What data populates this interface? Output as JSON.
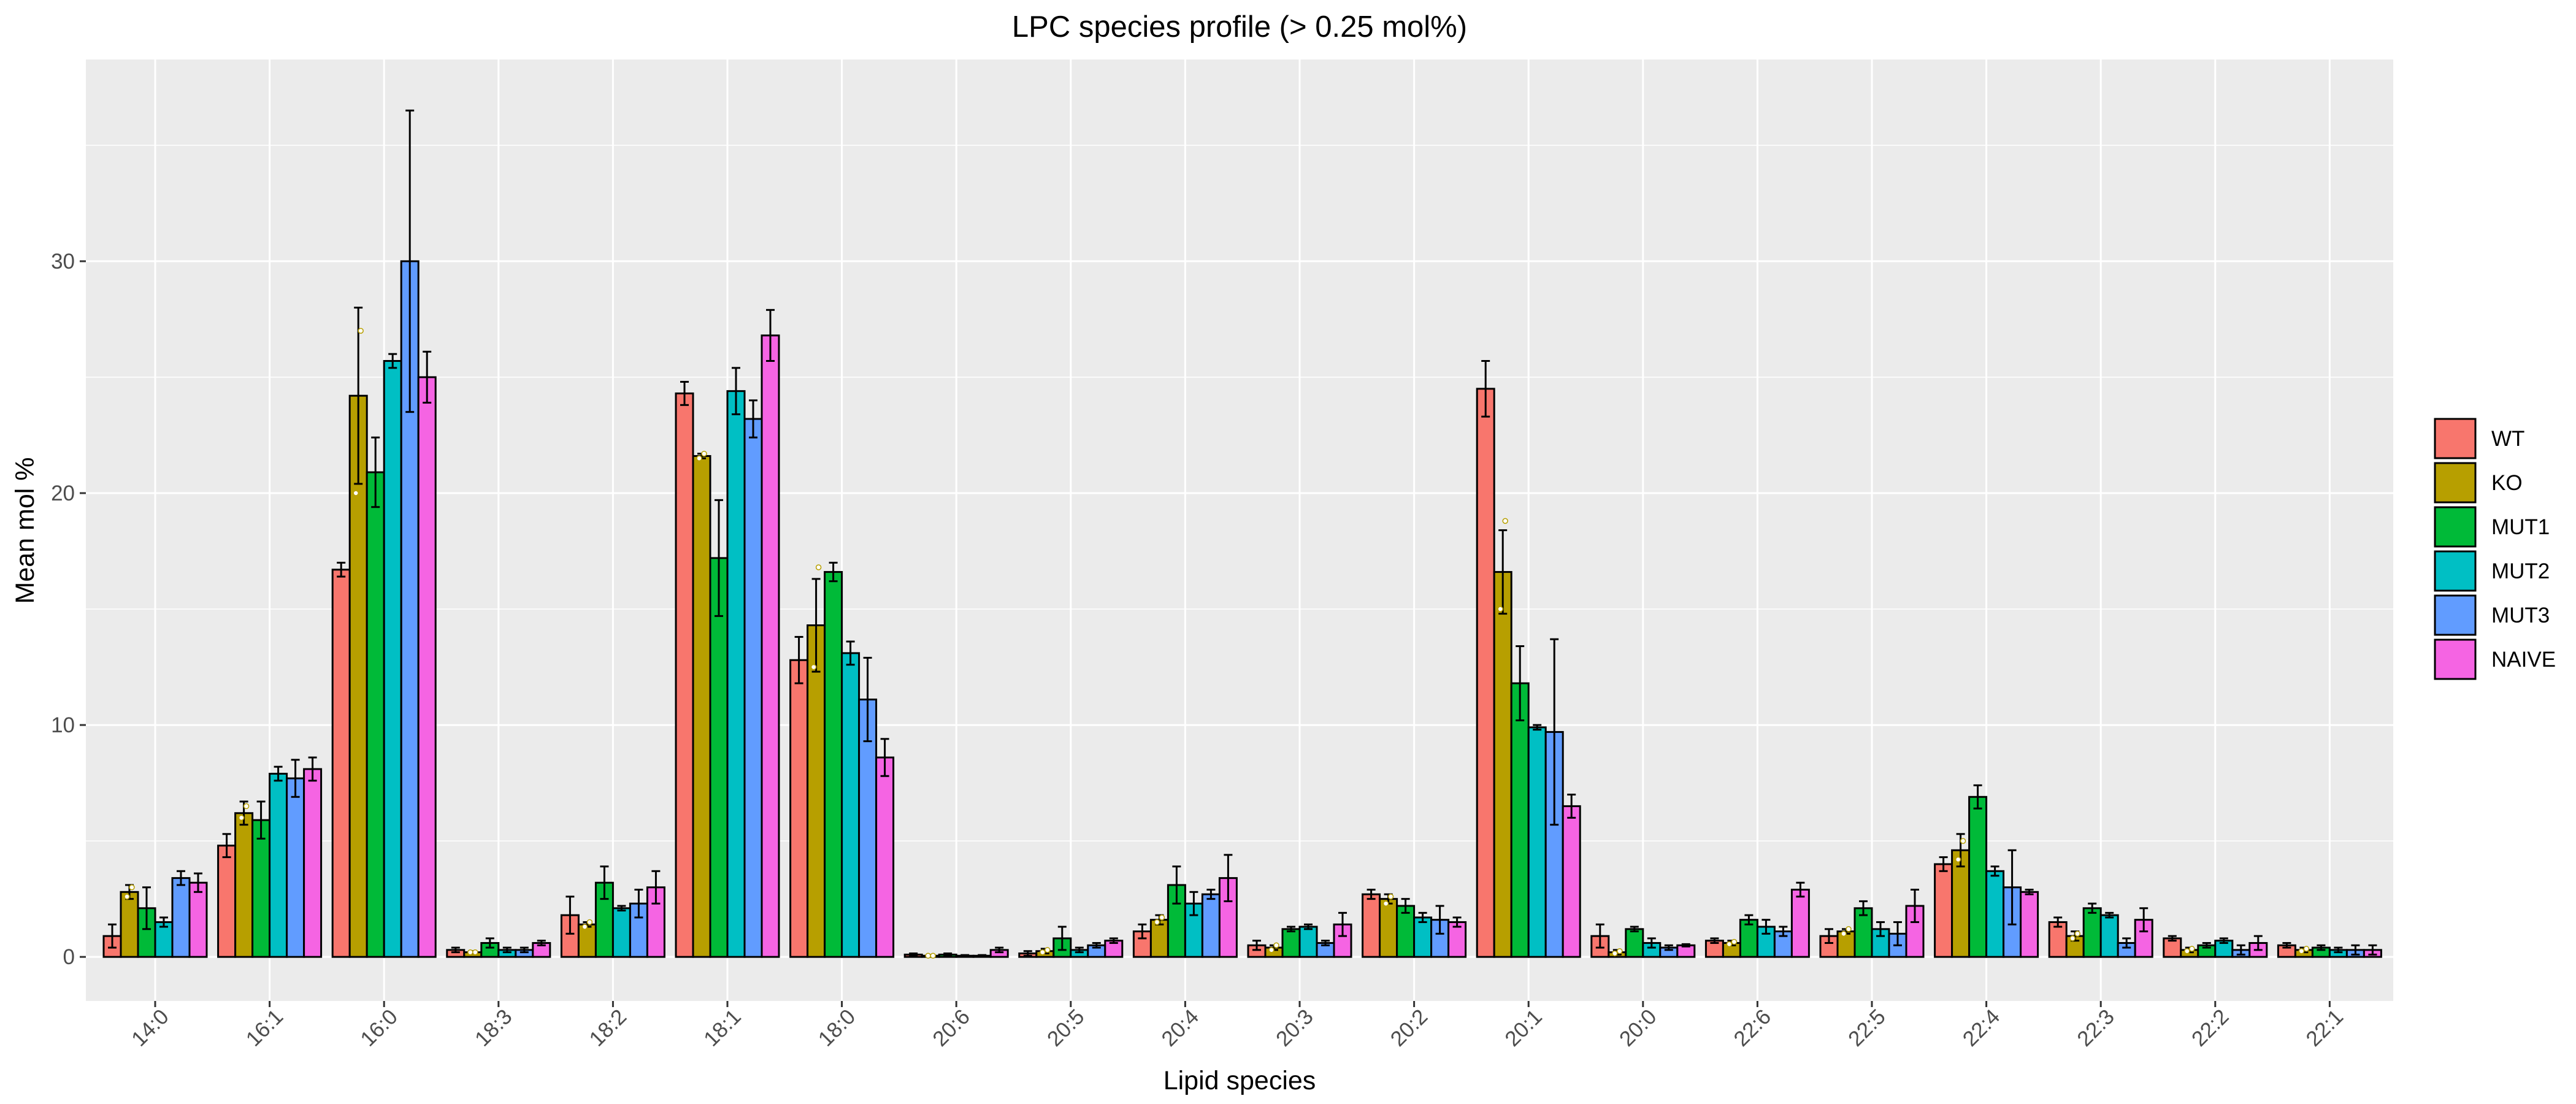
{
  "chart_data": {
    "type": "bar",
    "title": "LPC species profile (> 0.25 mol%)",
    "xlabel": "Lipid species",
    "ylabel": "Mean mol %",
    "ylim": [
      -1.9,
      38.7
    ],
    "yticks": [
      0,
      10,
      20,
      30
    ],
    "grid": true,
    "legend_position": "right",
    "categories": [
      "14:0",
      "16:1",
      "16:0",
      "18:3",
      "18:2",
      "18:1",
      "18:0",
      "20:6",
      "20:5",
      "20:4",
      "20:3",
      "20:2",
      "20:1",
      "20:0",
      "22:6",
      "22:5",
      "22:4",
      "22:3",
      "22:2",
      "22:1"
    ],
    "series": [
      {
        "name": "WT",
        "color": "#F8766D",
        "values": [
          0.9,
          4.8,
          16.7,
          0.3,
          1.8,
          24.3,
          12.8,
          0.1,
          0.15,
          1.1,
          0.5,
          2.7,
          24.5,
          0.9,
          0.7,
          0.9,
          4.0,
          1.5,
          0.8,
          0.5
        ],
        "errors": [
          0.5,
          0.5,
          0.3,
          0.1,
          0.8,
          0.5,
          1.0,
          0.05,
          0.1,
          0.3,
          0.2,
          0.2,
          1.2,
          0.5,
          0.1,
          0.3,
          0.3,
          0.2,
          0.1,
          0.1
        ]
      },
      {
        "name": "KO",
        "color": "#B79F00",
        "values": [
          2.8,
          6.2,
          24.2,
          0.2,
          1.4,
          21.6,
          14.3,
          0.05,
          0.25,
          1.6,
          0.4,
          2.5,
          16.6,
          0.2,
          0.6,
          1.1,
          4.6,
          0.9,
          0.3,
          0.3
        ],
        "errors": [
          0.3,
          0.5,
          3.8,
          0.05,
          0.1,
          0.1,
          2.0,
          0.03,
          0.1,
          0.2,
          0.1,
          0.2,
          1.8,
          0.1,
          0.1,
          0.1,
          0.7,
          0.2,
          0.1,
          0.1
        ],
        "points": [
          [
            2.6,
            3.0
          ],
          [
            6.0,
            6.5
          ],
          [
            20.0,
            27.0
          ],
          [
            0.2,
            0.2
          ],
          [
            1.3,
            1.5
          ],
          [
            21.5,
            21.7
          ],
          [
            12.5,
            16.8
          ],
          [
            0.05,
            0.05
          ],
          [
            0.2,
            0.3
          ],
          [
            1.5,
            1.7
          ],
          [
            0.3,
            0.5
          ],
          [
            2.3,
            2.6
          ],
          [
            15.0,
            18.8
          ],
          [
            0.15,
            0.25
          ],
          [
            0.55,
            0.65
          ],
          [
            1.0,
            1.2
          ],
          [
            4.2,
            5.0
          ],
          [
            0.8,
            1.0
          ],
          [
            0.25,
            0.35
          ],
          [
            0.25,
            0.35
          ]
        ]
      },
      {
        "name": "MUT1",
        "color": "#00BA38",
        "values": [
          2.1,
          5.9,
          20.9,
          0.6,
          3.2,
          17.2,
          16.6,
          0.1,
          0.8,
          3.1,
          1.2,
          2.2,
          11.8,
          1.2,
          1.6,
          2.1,
          6.9,
          2.1,
          0.5,
          0.4
        ],
        "errors": [
          0.9,
          0.8,
          1.5,
          0.2,
          0.7,
          2.5,
          0.4,
          0.05,
          0.5,
          0.8,
          0.1,
          0.3,
          1.6,
          0.1,
          0.2,
          0.3,
          0.5,
          0.2,
          0.1,
          0.1
        ]
      },
      {
        "name": "MUT2",
        "color": "#00BFC4",
        "values": [
          1.5,
          7.9,
          25.7,
          0.3,
          2.1,
          24.4,
          13.1,
          0.05,
          0.3,
          2.3,
          1.3,
          1.7,
          9.9,
          0.6,
          1.3,
          1.2,
          3.7,
          1.8,
          0.7,
          0.3
        ],
        "errors": [
          0.2,
          0.3,
          0.3,
          0.1,
          0.1,
          1.0,
          0.5,
          0.03,
          0.1,
          0.5,
          0.1,
          0.2,
          0.1,
          0.2,
          0.3,
          0.3,
          0.2,
          0.1,
          0.1,
          0.1
        ]
      },
      {
        "name": "MUT3",
        "color": "#619CFF",
        "values": [
          3.4,
          7.7,
          30.0,
          0.3,
          2.3,
          23.2,
          11.1,
          0.05,
          0.5,
          2.7,
          0.6,
          1.6,
          9.7,
          0.4,
          1.1,
          1.0,
          3.0,
          0.6,
          0.3,
          0.3
        ],
        "errors": [
          0.3,
          0.8,
          6.5,
          0.1,
          0.6,
          0.8,
          1.8,
          0.03,
          0.1,
          0.2,
          0.1,
          0.6,
          4.0,
          0.1,
          0.2,
          0.5,
          1.6,
          0.2,
          0.2,
          0.2
        ]
      },
      {
        "name": "NAIVE",
        "color": "#F564E3",
        "values": [
          3.2,
          8.1,
          25.0,
          0.6,
          3.0,
          26.8,
          8.6,
          0.3,
          0.7,
          3.4,
          1.4,
          1.5,
          6.5,
          0.5,
          2.9,
          2.2,
          2.8,
          1.6,
          0.6,
          0.3
        ],
        "errors": [
          0.4,
          0.5,
          1.1,
          0.1,
          0.7,
          1.1,
          0.8,
          0.1,
          0.1,
          1.0,
          0.5,
          0.2,
          0.5,
          0.05,
          0.3,
          0.7,
          0.1,
          0.5,
          0.3,
          0.2
        ]
      }
    ]
  }
}
